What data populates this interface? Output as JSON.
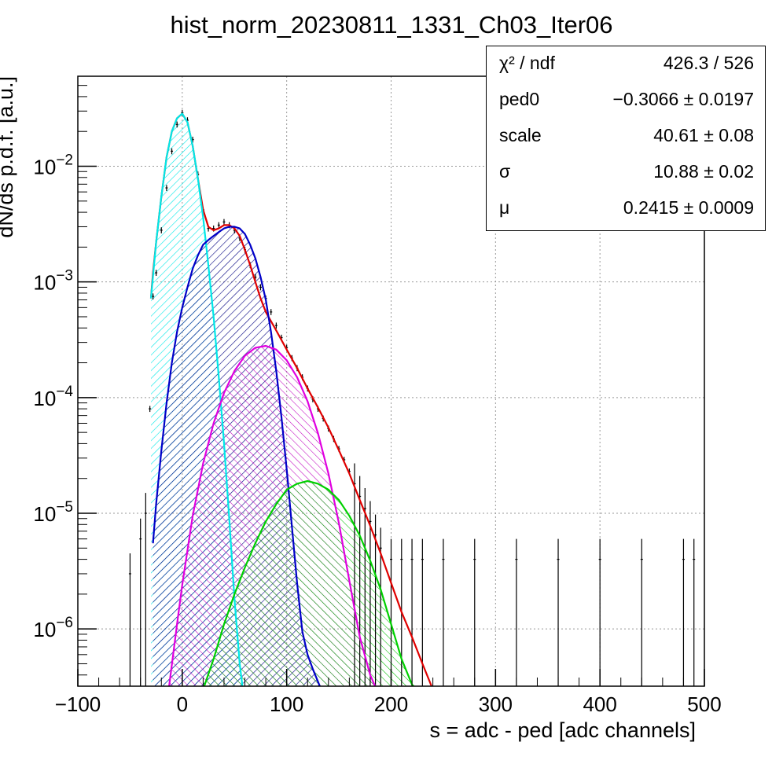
{
  "title": "hist_norm_20230811_1331_Ch03_Iter06",
  "stats": [
    {
      "name": "χ² / ndf",
      "value": "426.3 / 526"
    },
    {
      "name": "ped0",
      "value": "−0.3066 ± 0.0197"
    },
    {
      "name": "scale",
      "value": "40.61 ± 0.08"
    },
    {
      "name": "σ",
      "value": "10.88 ± 0.02"
    },
    {
      "name": "μ",
      "value": "0.2415 ± 0.0009"
    }
  ],
  "chart_data": {
    "type": "line",
    "title": "hist_norm_20230811_1331_Ch03_Iter06",
    "xlabel": "s = adc - ped [adc channels]",
    "ylabel": "dN/ds p.d.f. [a.u.]",
    "xlim": [
      -100,
      500
    ],
    "ylim": [
      3.2e-07,
      0.06
    ],
    "yscale": "log",
    "grid": true,
    "xticks": [
      "−100",
      "0",
      "100",
      "200",
      "300",
      "400",
      "500"
    ],
    "yticks": [
      {
        "base": "10",
        "exp": "−2",
        "value": 0.01
      },
      {
        "base": "10",
        "exp": "−3",
        "value": 0.001
      },
      {
        "base": "10",
        "exp": "−4",
        "value": 0.0001
      },
      {
        "base": "10",
        "exp": "−5",
        "value": 1e-05
      },
      {
        "base": "10",
        "exp": "−6",
        "value": 1e-06
      }
    ],
    "series": [
      {
        "color": "#000000",
        "style": "errorbars",
        "x": [
          -50,
          -40,
          -35,
          -31,
          -28,
          -25,
          -20,
          -15,
          -10,
          -5,
          0,
          5,
          10,
          15,
          20,
          25,
          30,
          35,
          40,
          45,
          50,
          55,
          60,
          65,
          70,
          75,
          80,
          85,
          90,
          95,
          100,
          105,
          110,
          115,
          120,
          125,
          130,
          135,
          140,
          145,
          150,
          155,
          160,
          165,
          170,
          175,
          180,
          185,
          190,
          200,
          210,
          220,
          230,
          250,
          280,
          320,
          360,
          400,
          440,
          480,
          490
        ],
        "y": [
          3e-06,
          6e-06,
          1e-05,
          8e-05,
          0.00075,
          0.0012,
          0.0028,
          0.0065,
          0.0135,
          0.023,
          0.029,
          0.025,
          0.017,
          0.0085,
          0.0042,
          0.0029,
          0.0029,
          0.0031,
          0.0033,
          0.0031,
          0.0028,
          0.0024,
          0.0019,
          0.0014,
          0.0011,
          0.0009,
          0.00072,
          0.00055,
          0.00042,
          0.00033,
          0.00027,
          0.00022,
          0.00018,
          0.00015,
          0.00012,
          9.7e-05,
          8e-05,
          6.6e-05,
          5.4e-05,
          4.4e-05,
          3.6e-05,
          2.9e-05,
          2.3e-05,
          1.8e-05,
          1.4e-05,
          1.1e-05,
          8.5e-06,
          6.5e-06,
          5e-06,
          4e-06,
          4e-06,
          4e-06,
          4e-06,
          4e-06,
          4e-06,
          4e-06,
          4e-06,
          4e-06,
          4e-06,
          4e-06,
          4e-06
        ]
      },
      {
        "color": "#e00000",
        "style": "line",
        "name": "",
        "x": [
          -30,
          -28,
          -25,
          -20,
          -15,
          -10,
          -5,
          0,
          5,
          10,
          15,
          20,
          25,
          30,
          35,
          40,
          45,
          50,
          55,
          60,
          65,
          70,
          75,
          80,
          90,
          100,
          110,
          120,
          130,
          140,
          150,
          160,
          170,
          180,
          190,
          200,
          210,
          220,
          230,
          240
        ],
        "y": [
          0.00072,
          0.0012,
          0.0022,
          0.0055,
          0.012,
          0.02,
          0.026,
          0.0285,
          0.024,
          0.015,
          0.0078,
          0.0042,
          0.003,
          0.0028,
          0.0029,
          0.0031,
          0.0031,
          0.0029,
          0.0025,
          0.0019,
          0.0014,
          0.001,
          0.00072,
          0.00055,
          0.00038,
          0.00026,
          0.00018,
          0.00012,
          8.2e-05,
          5.5e-05,
          3.5e-05,
          2.2e-05,
          1.3e-05,
          7.8e-06,
          4.5e-06,
          2.5e-06,
          1.4e-06,
          8.5e-07,
          5e-07,
          3e-07
        ]
      },
      {
        "color": "#00e8e8",
        "style": "hatched",
        "name": "",
        "x": [
          -30,
          -25,
          -20,
          -15,
          -10,
          -5,
          0,
          5,
          10,
          15,
          20,
          25,
          30,
          35,
          40,
          45,
          50,
          55,
          58
        ],
        "y": [
          0.00072,
          0.0022,
          0.0055,
          0.012,
          0.02,
          0.026,
          0.0285,
          0.024,
          0.015,
          0.0078,
          0.0036,
          0.0014,
          0.0005,
          0.00015,
          4e-05,
          9e-06,
          1.8e-06,
          5e-07,
          3e-07
        ]
      },
      {
        "color": "#0000c8",
        "style": "hatched",
        "name": "",
        "x": [
          -28,
          -25,
          -20,
          -15,
          -10,
          -5,
          0,
          5,
          10,
          15,
          20,
          25,
          30,
          35,
          40,
          45,
          50,
          55,
          60,
          65,
          70,
          75,
          80,
          85,
          90,
          95,
          100,
          105,
          110,
          115,
          120,
          125,
          130,
          133
        ],
        "y": [
          5.5e-06,
          1.2e-05,
          3.5e-05,
          9e-05,
          0.0002,
          0.00037,
          0.0006,
          0.0009,
          0.0013,
          0.0017,
          0.0021,
          0.0023,
          0.0025,
          0.0027,
          0.0029,
          0.003,
          0.003,
          0.0029,
          0.0026,
          0.0021,
          0.0016,
          0.0011,
          0.0007,
          0.00037,
          0.00017,
          6.8e-05,
          2.4e-05,
          7.7e-06,
          2.5e-06,
          9.5e-07,
          6e-07,
          4.5e-07,
          3.5e-07,
          3e-07
        ]
      },
      {
        "color": "#e000e0",
        "style": "hatched",
        "name": "",
        "x": [
          -13,
          -5,
          0,
          10,
          20,
          30,
          40,
          50,
          60,
          70,
          80,
          90,
          100,
          110,
          120,
          130,
          140,
          150,
          160,
          170,
          180,
          186
        ],
        "y": [
          3e-07,
          1.1e-06,
          2.4e-06,
          9.5e-06,
          2.7e-05,
          6e-05,
          0.00011,
          0.00017,
          0.00023,
          0.00027,
          0.00028,
          0.00026,
          0.00021,
          0.00015,
          9.3e-05,
          4.9e-05,
          2.2e-05,
          8.2e-06,
          2.6e-06,
          8.5e-07,
          4e-07,
          3e-07
        ]
      },
      {
        "color": "#00d000",
        "style": "hatched",
        "name": "",
        "x": [
          20,
          30,
          40,
          50,
          60,
          70,
          80,
          90,
          100,
          110,
          120,
          130,
          140,
          150,
          160,
          170,
          180,
          190,
          200,
          210,
          220,
          225
        ],
        "y": [
          3e-07,
          5.5e-07,
          1.1e-06,
          2e-06,
          3.4e-06,
          5.5e-06,
          8.5e-06,
          1.2e-05,
          1.6e-05,
          1.8e-05,
          1.9e-05,
          1.8e-05,
          1.6e-05,
          1.3e-05,
          9.5e-06,
          6.4e-06,
          3.9e-06,
          2.2e-06,
          1.1e-06,
          5.5e-07,
          3.3e-07,
          3e-07
        ]
      }
    ]
  }
}
